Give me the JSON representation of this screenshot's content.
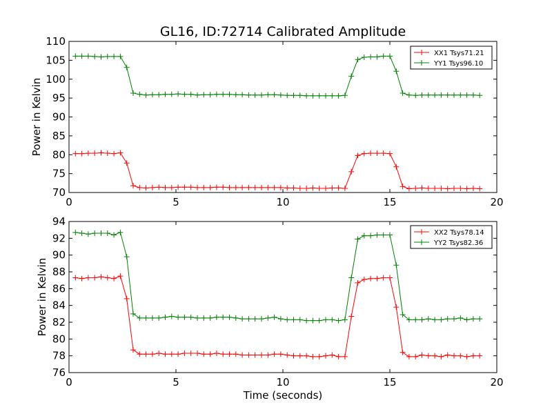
{
  "chart_data": [
    {
      "type": "line",
      "title": "GL16, ID:72714 Calibrated Amplitude",
      "xlabel": "",
      "ylabel": "Power in Kelvin",
      "xlim": [
        0,
        20
      ],
      "ylim": [
        70,
        110
      ],
      "xticks": [
        0,
        5,
        10,
        15,
        20
      ],
      "yticks": [
        70,
        75,
        80,
        85,
        90,
        95,
        100,
        105,
        110
      ],
      "grid": false,
      "legend": "top-right",
      "x": [
        0.3,
        0.6,
        0.9,
        1.2,
        1.5,
        1.8,
        2.1,
        2.4,
        2.7,
        3.0,
        3.3,
        3.6,
        3.9,
        4.2,
        4.5,
        4.8,
        5.1,
        5.4,
        5.7,
        6.0,
        6.3,
        6.6,
        6.9,
        7.2,
        7.5,
        7.8,
        8.1,
        8.4,
        8.7,
        9.0,
        9.3,
        9.6,
        9.9,
        10.2,
        10.5,
        10.8,
        11.1,
        11.4,
        11.7,
        12.0,
        12.3,
        12.6,
        12.9,
        13.2,
        13.5,
        13.8,
        14.1,
        14.4,
        14.7,
        15.0,
        15.3,
        15.6,
        15.9,
        16.2,
        16.5,
        16.8,
        17.1,
        17.4,
        17.7,
        18.0,
        18.3,
        18.6,
        18.9,
        19.2
      ],
      "series": [
        {
          "name": "XX1 Tsys71.21",
          "color": "#ff0000",
          "values": [
            80.3,
            80.3,
            80.4,
            80.4,
            80.5,
            80.4,
            80.3,
            80.5,
            77.8,
            71.8,
            71.3,
            71.2,
            71.3,
            71.4,
            71.3,
            71.3,
            71.4,
            71.4,
            71.4,
            71.3,
            71.3,
            71.3,
            71.4,
            71.4,
            71.3,
            71.3,
            71.3,
            71.3,
            71.3,
            71.3,
            71.3,
            71.3,
            71.3,
            71.2,
            71.2,
            71.1,
            71.1,
            71.2,
            71.1,
            71.1,
            71.2,
            71.2,
            71.1,
            75.5,
            79.8,
            80.3,
            80.4,
            80.4,
            80.4,
            80.3,
            76.8,
            71.6,
            71.0,
            71.1,
            71.2,
            71.1,
            71.1,
            71.1,
            71.0,
            71.1,
            71.1,
            71.0,
            71.1,
            71.0
          ]
        },
        {
          "name": "YY1 Tsys96.10",
          "color": "#008000",
          "values": [
            106.1,
            106.1,
            106.1,
            106.0,
            105.9,
            106.0,
            106.0,
            106.0,
            103.1,
            96.3,
            96.0,
            95.8,
            95.9,
            95.9,
            96.0,
            96.0,
            96.1,
            96.0,
            96.0,
            95.8,
            95.9,
            95.9,
            96.0,
            96.0,
            96.0,
            95.9,
            95.9,
            95.8,
            95.8,
            95.8,
            95.9,
            95.9,
            95.8,
            95.7,
            95.7,
            95.7,
            95.6,
            95.6,
            95.6,
            95.6,
            95.6,
            95.6,
            95.7,
            100.8,
            105.2,
            105.8,
            105.9,
            105.9,
            106.1,
            106.1,
            102.1,
            96.3,
            95.8,
            95.7,
            95.8,
            95.8,
            95.8,
            95.8,
            95.8,
            95.8,
            95.8,
            95.8,
            95.8,
            95.7
          ]
        }
      ]
    },
    {
      "type": "line",
      "title": "",
      "xlabel": "Time (seconds)",
      "ylabel": "Power in Kelvin",
      "xlim": [
        0,
        20
      ],
      "ylim": [
        76,
        94
      ],
      "xticks": [
        0,
        5,
        10,
        15,
        20
      ],
      "yticks": [
        76,
        78,
        80,
        82,
        84,
        86,
        88,
        90,
        92,
        94
      ],
      "grid": false,
      "legend": "top-right",
      "x": [
        0.3,
        0.6,
        0.9,
        1.2,
        1.5,
        1.8,
        2.1,
        2.4,
        2.7,
        3.0,
        3.3,
        3.6,
        3.9,
        4.2,
        4.5,
        4.8,
        5.1,
        5.4,
        5.7,
        6.0,
        6.3,
        6.6,
        6.9,
        7.2,
        7.5,
        7.8,
        8.1,
        8.4,
        8.7,
        9.0,
        9.3,
        9.6,
        9.9,
        10.2,
        10.5,
        10.8,
        11.1,
        11.4,
        11.7,
        12.0,
        12.3,
        12.6,
        12.9,
        13.2,
        13.5,
        13.8,
        14.1,
        14.4,
        14.7,
        15.0,
        15.3,
        15.6,
        15.9,
        16.2,
        16.5,
        16.8,
        17.1,
        17.4,
        17.7,
        18.0,
        18.3,
        18.6,
        18.9,
        19.2
      ],
      "series": [
        {
          "name": "XX2 Tsys78.14",
          "color": "#ff0000",
          "values": [
            87.3,
            87.2,
            87.3,
            87.3,
            87.4,
            87.3,
            87.2,
            87.5,
            84.8,
            78.7,
            78.2,
            78.2,
            78.2,
            78.3,
            78.2,
            78.2,
            78.2,
            78.3,
            78.3,
            78.3,
            78.2,
            78.2,
            78.3,
            78.2,
            78.2,
            78.2,
            78.1,
            78.1,
            78.1,
            78.1,
            78.1,
            78.2,
            78.2,
            78.1,
            78.0,
            78.0,
            78.0,
            77.9,
            77.9,
            78.0,
            78.1,
            77.9,
            77.9,
            82.7,
            86.7,
            87.1,
            87.2,
            87.2,
            87.3,
            87.3,
            83.8,
            78.4,
            77.9,
            77.9,
            78.1,
            78.0,
            78.0,
            77.9,
            78.1,
            78.0,
            78.0,
            77.9,
            78.0,
            78.0
          ]
        },
        {
          "name": "YY2 Tsys82.36",
          "color": "#008000",
          "values": [
            92.7,
            92.6,
            92.5,
            92.6,
            92.6,
            92.6,
            92.4,
            92.7,
            89.8,
            83.0,
            82.5,
            82.5,
            82.5,
            82.5,
            82.6,
            82.7,
            82.6,
            82.6,
            82.6,
            82.5,
            82.5,
            82.5,
            82.6,
            82.6,
            82.6,
            82.5,
            82.4,
            82.4,
            82.4,
            82.4,
            82.5,
            82.6,
            82.4,
            82.3,
            82.3,
            82.3,
            82.2,
            82.2,
            82.2,
            82.3,
            82.3,
            82.2,
            82.3,
            87.3,
            91.9,
            92.3,
            92.3,
            92.4,
            92.4,
            92.4,
            88.8,
            82.9,
            82.3,
            82.3,
            82.3,
            82.4,
            82.3,
            82.3,
            82.4,
            82.4,
            82.5,
            82.3,
            82.4,
            82.4
          ]
        }
      ]
    }
  ]
}
